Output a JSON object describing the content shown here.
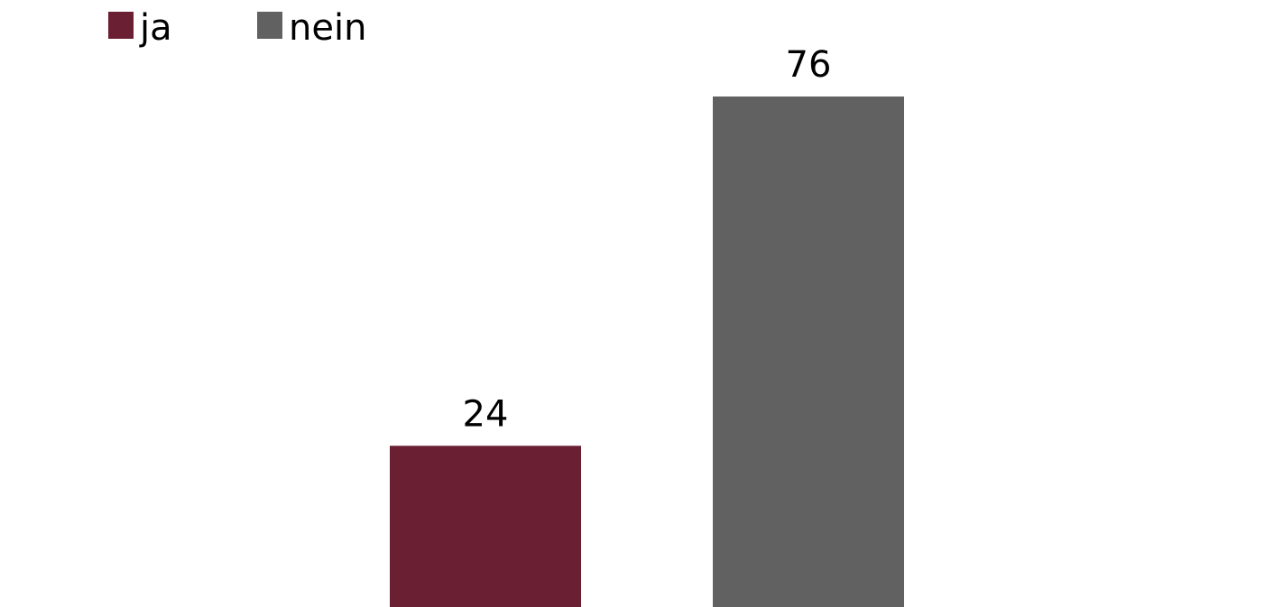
{
  "chart_data": {
    "type": "bar",
    "categories": [
      "ja",
      "nein"
    ],
    "values": [
      24,
      76
    ],
    "colors": [
      "#6B1F32",
      "#616161"
    ],
    "legend": [
      "ja",
      "nein"
    ],
    "legend_position": "top-left",
    "value_labels": [
      "24",
      "76"
    ],
    "grid": false
  }
}
